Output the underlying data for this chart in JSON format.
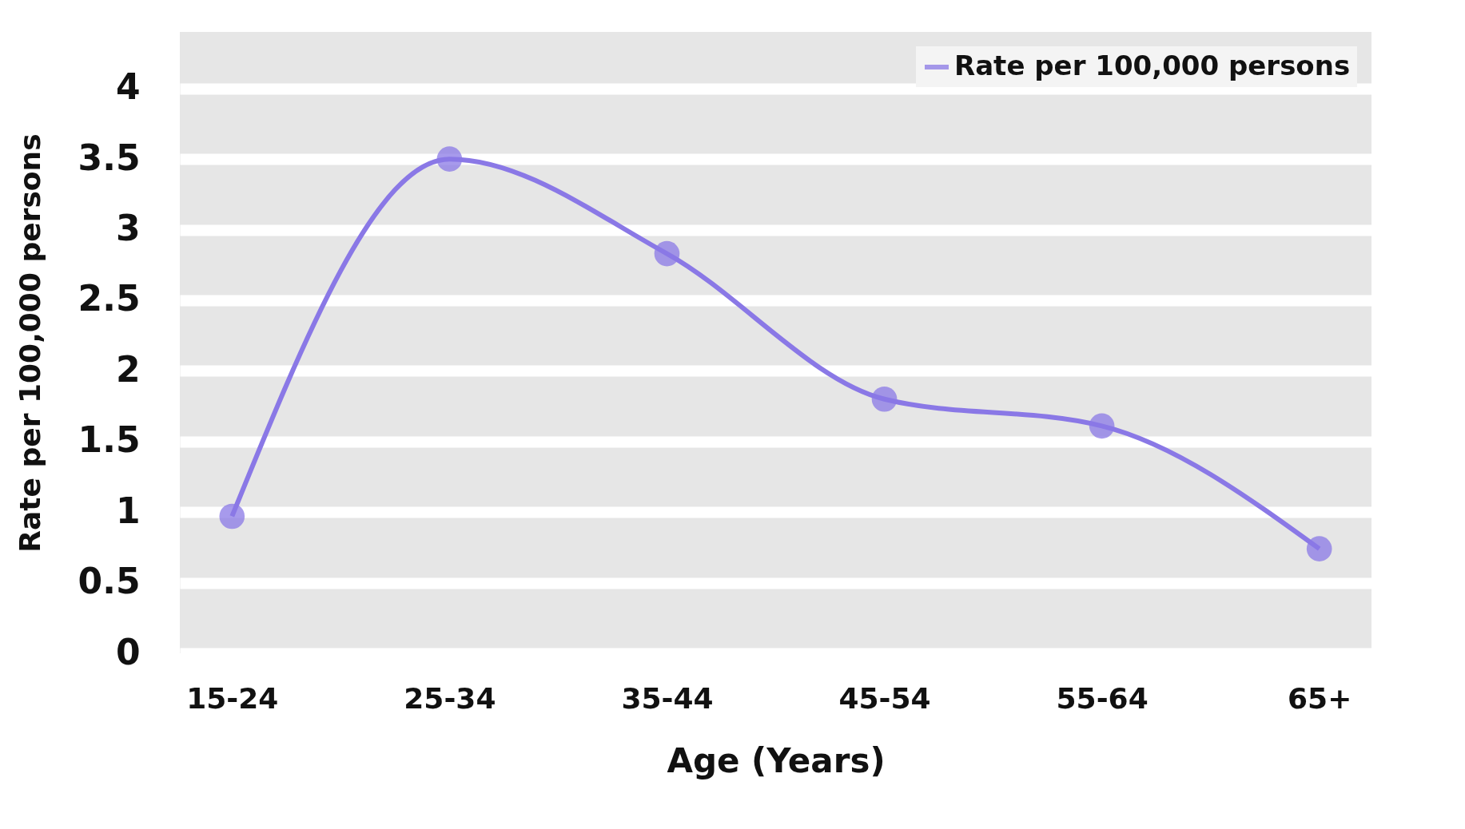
{
  "chart_data": {
    "type": "line",
    "xlabel": "Age (Years)",
    "ylabel": "Rate per 100,000 persons",
    "categories": [
      "15-24",
      "25-34",
      "35-44",
      "45-54",
      "55-64",
      "65+"
    ],
    "series": [
      {
        "name": "Rate per 100,000 persons",
        "color": "#8a78e6",
        "values": [
          0.97,
          3.5,
          2.83,
          1.8,
          1.61,
          0.74
        ]
      }
    ],
    "ylim": [
      0,
      4.4
    ],
    "yticks": [
      0,
      0.5,
      1,
      1.5,
      2,
      2.5,
      3,
      3.5,
      4
    ],
    "grid": "y",
    "legend": "top right",
    "marker": "circle",
    "line_style": "solid"
  }
}
